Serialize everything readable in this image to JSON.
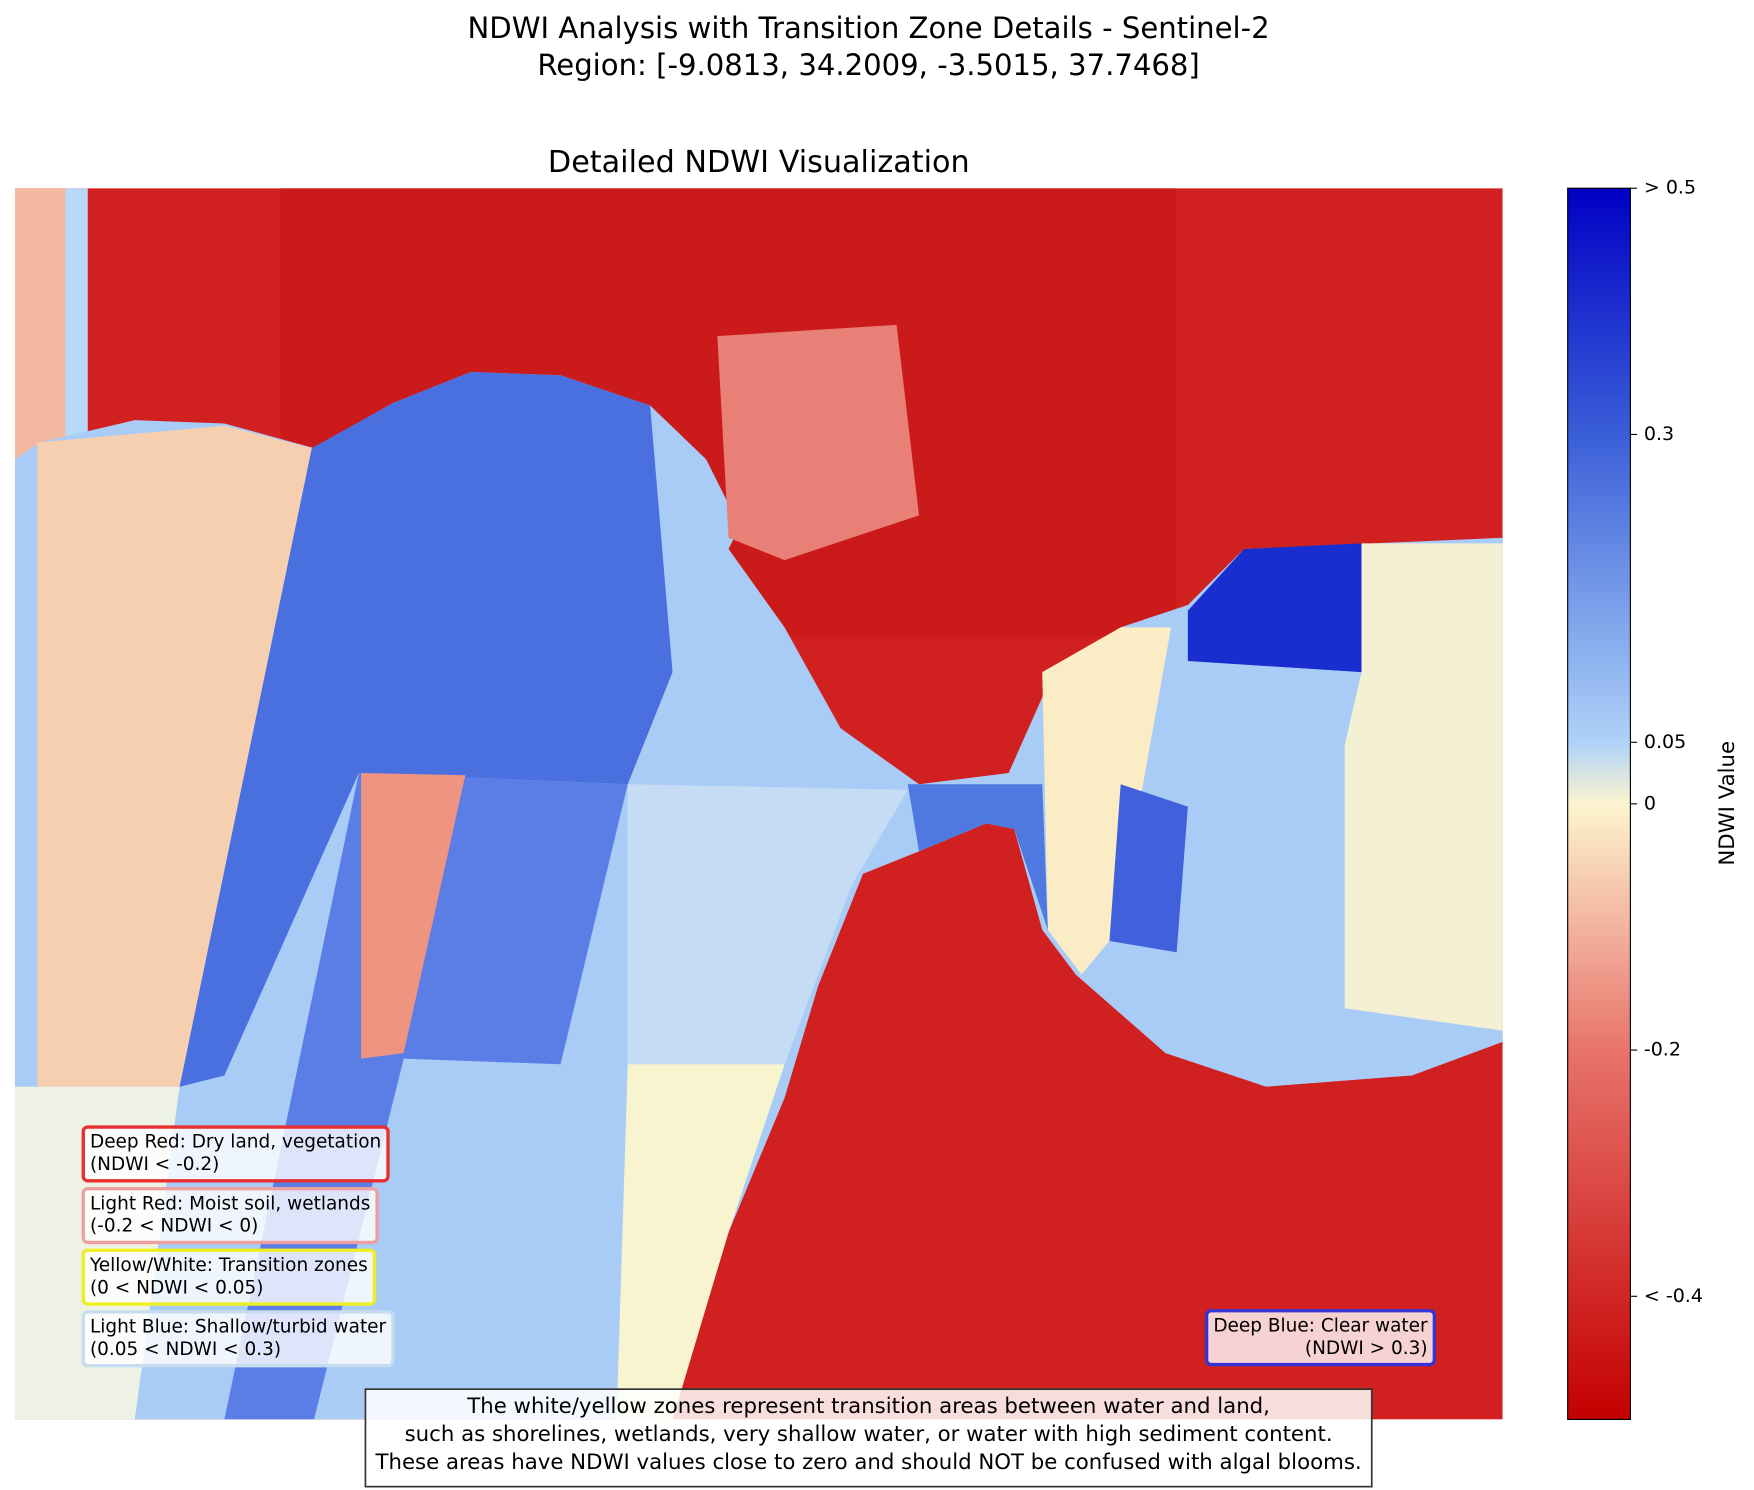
{
  "chart_data": {
    "type": "raster",
    "title": [
      "NDWI Analysis with Transition Zone Details - Sentinel-2",
      "Region: [-9.0813, 34.2009, -3.5015, 37.7468]"
    ],
    "subtitle": "Detailed NDWI Visualization",
    "colorbar": {
      "label": "NDWI Value",
      "lim": [
        -0.5,
        0.5
      ],
      "ticks": [
        {
          "value": 0.5,
          "label": "> 0.5"
        },
        0.3,
        0.05,
        0,
        -0.2,
        {
          "value": -0.4,
          "label": "< -0.4"
        }
      ],
      "colormap": [
        {
          "value": -0.5,
          "color": "#c40000"
        },
        {
          "value": -0.2,
          "color": "#e8736c"
        },
        {
          "value": 0,
          "color": "#fdf4cf"
        },
        {
          "value": 0.05,
          "color": "#aed2f8"
        },
        {
          "value": 0.3,
          "color": "#3a5ed8"
        },
        {
          "value": 0.5,
          "color": "#0000c4"
        }
      ]
    },
    "legend": [
      {
        "lines": [
          "Deep Red: Dry land, vegetation",
          "(NDWI < -0.2)"
        ],
        "color": "#e83030"
      },
      {
        "lines": [
          "Light Red: Moist soil, wetlands",
          "(-0.2 < NDWI < 0)"
        ],
        "color": "#eea0a0"
      },
      {
        "lines": [
          "Yellow/White: Transition zones",
          "(0 < NDWI < 0.05)"
        ],
        "color": "#eeee20"
      },
      {
        "lines": [
          "Light Blue: Shallow/turbid water",
          "(0.05 < NDWI < 0.3)"
        ],
        "color": "#c8dcf0"
      }
    ],
    "legend_right": {
      "lines": [
        "Deep Blue: Clear water",
        "(NDWI > 0.3)"
      ],
      "color": "#3434d4"
    },
    "note": [
      "The white/yellow zones represent transition areas between water and land,",
      "such as shorelines, wetlands, very shallow water, or water with high sediment content.",
      "These areas have NDWI values close to zero and should NOT be confused with algal blooms."
    ]
  }
}
